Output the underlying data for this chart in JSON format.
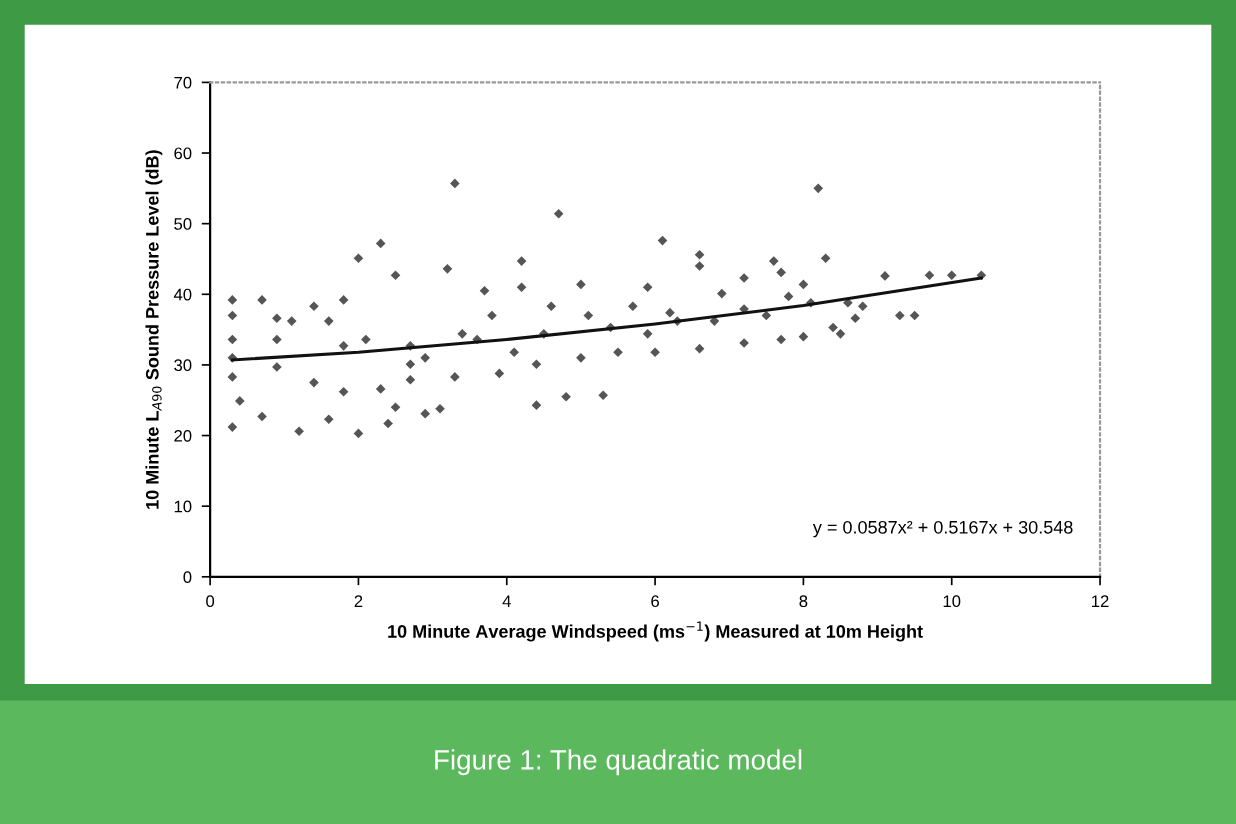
{
  "chart_data": {
    "type": "scatter",
    "xlabel": "10 Minute Average Windspeed (ms$^{−1}$) Measured at 10m Height",
    "ylabel": "10 Minute L$_{A90}$ Sound Pressure Level (dB)",
    "xlim": [
      0,
      12
    ],
    "xticks": [
      0,
      2,
      4,
      6,
      8,
      10,
      12
    ],
    "ylim": [
      0,
      70
    ],
    "yticks": [
      0,
      10,
      20,
      30,
      40,
      50,
      60,
      70
    ],
    "grid": false,
    "annotations": [
      "y = 0.0587x² + 0.5167x + 30.548",
      "Figure 1: The quadratic model"
    ],
    "series": [
      {
        "color": "#555555",
        "marker": "diamond",
        "x": [
          3.3,
          4.7,
          8.2,
          6.1,
          2.3,
          2.0,
          4.2,
          6.6,
          8.3,
          7.6,
          0.3,
          1.2,
          2.0,
          2.4,
          2.9,
          3.1,
          4.4,
          4.8,
          5.3,
          1.6,
          0.7,
          10.4,
          10.0,
          9.7,
          9.1,
          9.3,
          9.5,
          8.8,
          8.5,
          8.4,
          0.3,
          0.3,
          0.3,
          0.3,
          0.4,
          0.3,
          0.9,
          1.4,
          1.8,
          2.5,
          3.2,
          3.7,
          4.2,
          5.0,
          5.9,
          6.6,
          7.2,
          7.7,
          8.0,
          0.9,
          1.4,
          1.8,
          2.3,
          2.7,
          3.3,
          3.9,
          4.4,
          5.0,
          5.5,
          6.0,
          6.6,
          7.2,
          7.7,
          8.0,
          0.9,
          1.8,
          2.7,
          3.6,
          4.5,
          5.4,
          6.3,
          7.2,
          8.1,
          8.6,
          2.7,
          4.1,
          5.9,
          6.8,
          0.7,
          1.1,
          1.6,
          2.1,
          2.5,
          2.9,
          3.4,
          3.8,
          4.6,
          5.1,
          5.7,
          6.2,
          6.9,
          7.5,
          7.8,
          8.7
        ],
        "values": [
          55.7,
          51.4,
          55.0,
          47.6,
          47.2,
          45.1,
          44.7,
          45.6,
          45.1,
          44.7,
          21.2,
          20.6,
          20.3,
          21.7,
          23.1,
          23.8,
          24.3,
          25.5,
          25.7,
          22.3,
          22.7,
          42.7,
          42.7,
          42.7,
          42.6,
          37.0,
          37.0,
          38.3,
          34.4,
          35.3,
          39.2,
          37.0,
          33.6,
          28.3,
          24.9,
          31.0,
          36.6,
          38.3,
          39.2,
          42.7,
          43.6,
          40.5,
          41.0,
          41.4,
          41.0,
          44.0,
          42.3,
          43.1,
          41.4,
          29.7,
          27.5,
          26.2,
          26.6,
          27.9,
          28.3,
          28.8,
          30.1,
          31.0,
          31.8,
          31.8,
          32.3,
          33.1,
          33.6,
          34.0,
          33.6,
          32.7,
          32.7,
          33.6,
          34.4,
          35.3,
          36.2,
          37.9,
          38.8,
          38.8,
          30.1,
          31.8,
          34.4,
          36.2,
          39.2,
          36.2,
          36.2,
          33.6,
          24.0,
          31.0,
          34.4,
          37.0,
          38.3,
          37.0,
          38.3,
          37.4,
          40.1,
          37.0,
          39.7,
          36.6
        ]
      },
      {
        "type": "line",
        "color": "#111111",
        "x": [
          0.3,
          2,
          4,
          6,
          8,
          10.4
        ],
        "values": [
          30.7,
          31.8,
          33.6,
          35.8,
          38.4,
          42.3
        ]
      }
    ]
  }
}
